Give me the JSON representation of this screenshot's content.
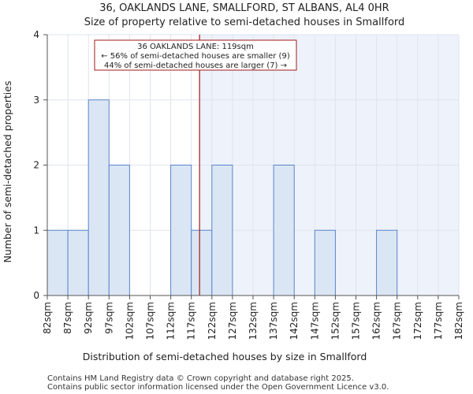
{
  "chart_data": {
    "type": "bar",
    "title_lines": [
      "36, OAKLANDS LANE, SMALLFORD, ST ALBANS, AL4 0HR",
      "Size of property relative to semi-detached houses in Smallford"
    ],
    "xlabel": "Distribution of semi-detached houses by size in Smallford",
    "ylabel": "Number of semi-detached properties",
    "bin_edges": [
      82,
      87,
      92,
      97,
      102,
      107,
      112,
      117,
      122,
      127,
      132,
      137,
      142,
      147,
      152,
      157,
      162,
      167,
      172,
      177,
      182
    ],
    "tick_labels": [
      "82sqm",
      "87sqm",
      "92sqm",
      "97sqm",
      "102sqm",
      "107sqm",
      "112sqm",
      "117sqm",
      "122sqm",
      "127sqm",
      "132sqm",
      "137sqm",
      "142sqm",
      "147sqm",
      "152sqm",
      "157sqm",
      "162sqm",
      "167sqm",
      "172sqm",
      "177sqm",
      "182sqm"
    ],
    "values": [
      1,
      1,
      3,
      2,
      0,
      0,
      2,
      1,
      2,
      0,
      0,
      2,
      0,
      1,
      0,
      0,
      1,
      0,
      0,
      0
    ],
    "ylim": [
      0,
      4
    ],
    "yticks": [
      0,
      1,
      2,
      3,
      4
    ],
    "marker": {
      "value": 119,
      "color": "#a01a1a"
    },
    "annotation_lines": [
      "36 OAKLANDS LANE: 119sqm",
      "← 56% of semi-detached houses are smaller (9)",
      "44% of semi-detached houses are larger (7) →"
    ],
    "colors": {
      "bar_fill": "#dbe6f5",
      "bar_edge": "#5a85c8",
      "highlight_bg": "#eef2fb",
      "grid": "#dfe4ec",
      "axis": "#555555"
    }
  },
  "footer": {
    "line1": "Contains HM Land Registry data © Crown copyright and database right 2025.",
    "line2": "Contains public sector information licensed under the Open Government Licence v3.0."
  }
}
